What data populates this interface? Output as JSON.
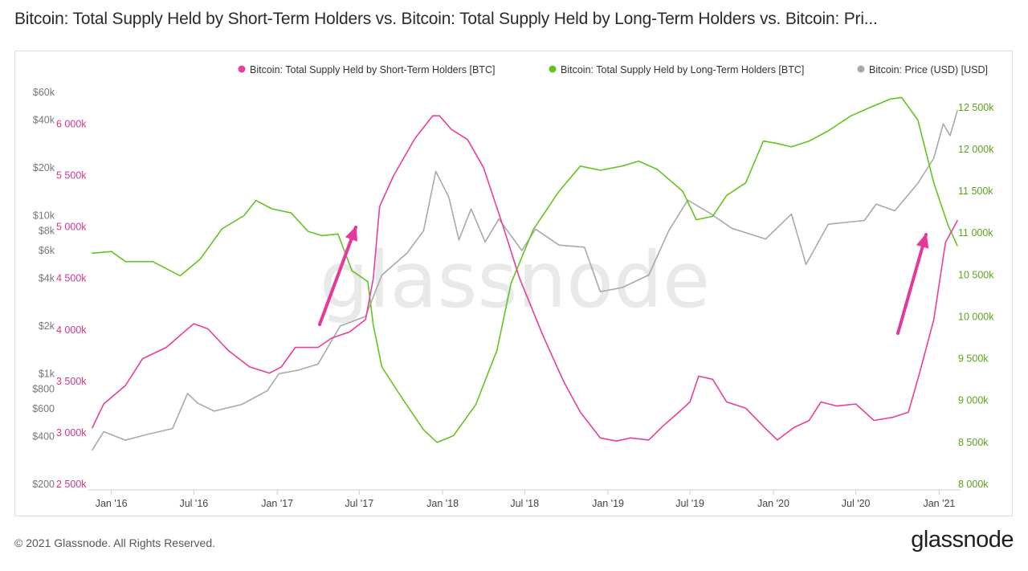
{
  "title": "Bitcoin: Total Supply Held by Short-Term Holders vs. Bitcoin: Total Supply Held by Long-Term Holders vs. Bitcoin: Pri...",
  "footer": {
    "copyright": "© 2021 Glassnode. All Rights Reserved.",
    "logo": "glassnode"
  },
  "watermark": "glassnode",
  "colors": {
    "sth": "#e83e9c",
    "lth": "#62c51e",
    "price": "#a9a9a9",
    "arrow": "#e6379a"
  },
  "chart_data": {
    "type": "line",
    "legend_position": "top-right",
    "grid": false,
    "x_ticks": [
      "Jan '16",
      "Jul '16",
      "Jan '17",
      "Jul '17",
      "Jan '18",
      "Jul '18",
      "Jan '19",
      "Jul '19",
      "Jan '20",
      "Jul '20",
      "Jan '21"
    ],
    "price_axis": {
      "scale": "log",
      "range": [
        200,
        60000
      ],
      "ticks": [
        "$60k",
        "$40k",
        "$20k",
        "$10k",
        "$8k",
        "$6k",
        "$4k",
        "$2k",
        "$1k",
        "$800",
        "$600",
        "$400",
        "$200"
      ]
    },
    "sth_axis": {
      "range": [
        2500000,
        6300000
      ],
      "ticks": [
        "6 000k",
        "5 500k",
        "5 000k",
        "4 500k",
        "4 000k",
        "3 500k",
        "3 000k",
        "2 500k"
      ]
    },
    "lth_axis": {
      "range": [
        8000000,
        12700000
      ],
      "ticks": [
        "12 500k",
        "12 000k",
        "11 500k",
        "11 000k",
        "10 500k",
        "10 000k",
        "9 500k",
        "9 000k",
        "8 500k",
        "8 000k"
      ]
    },
    "series": [
      {
        "name": "Bitcoin: Total Supply Held by Short-Term Holders [BTC]",
        "axis": "sth",
        "points": [
          [
            "2015-11-20",
            3050000
          ],
          [
            "2015-12-15",
            3280000
          ],
          [
            "2016-02-01",
            3460000
          ],
          [
            "2016-03-10",
            3720000
          ],
          [
            "2016-05-01",
            3830000
          ],
          [
            "2016-06-20",
            4020000
          ],
          [
            "2016-07-01",
            4060000
          ],
          [
            "2016-08-01",
            4010000
          ],
          [
            "2016-09-15",
            3800000
          ],
          [
            "2016-11-01",
            3640000
          ],
          [
            "2016-12-15",
            3580000
          ],
          [
            "2017-01-10",
            3640000
          ],
          [
            "2017-02-10",
            3830000
          ],
          [
            "2017-04-01",
            3830000
          ],
          [
            "2017-05-01",
            3920000
          ],
          [
            "2017-06-10",
            3980000
          ],
          [
            "2017-07-15",
            4100000
          ],
          [
            "2017-08-01",
            4500000
          ],
          [
            "2017-08-15",
            5200000
          ],
          [
            "2017-09-15",
            5500000
          ],
          [
            "2017-11-01",
            5860000
          ],
          [
            "2017-12-10",
            6080000
          ],
          [
            "2017-12-25",
            6080000
          ],
          [
            "2018-01-20",
            5950000
          ],
          [
            "2018-02-25",
            5850000
          ],
          [
            "2018-04-01",
            5580000
          ],
          [
            "2018-05-15",
            5000000
          ],
          [
            "2018-06-20",
            4500000
          ],
          [
            "2018-08-10",
            3950000
          ],
          [
            "2018-09-25",
            3500000
          ],
          [
            "2018-11-01",
            3200000
          ],
          [
            "2018-12-15",
            2950000
          ],
          [
            "2019-01-20",
            2920000
          ],
          [
            "2019-02-20",
            2950000
          ],
          [
            "2019-04-01",
            2930000
          ],
          [
            "2019-05-01",
            3060000
          ],
          [
            "2019-06-01",
            3180000
          ],
          [
            "2019-07-01",
            3300000
          ],
          [
            "2019-07-20",
            3550000
          ],
          [
            "2019-08-20",
            3520000
          ],
          [
            "2019-09-20",
            3300000
          ],
          [
            "2019-11-01",
            3240000
          ],
          [
            "2019-12-15",
            3040000
          ],
          [
            "2020-01-10",
            2930000
          ],
          [
            "2020-02-15",
            3050000
          ],
          [
            "2020-03-20",
            3120000
          ],
          [
            "2020-04-15",
            3300000
          ],
          [
            "2020-05-20",
            3260000
          ],
          [
            "2020-07-01",
            3280000
          ],
          [
            "2020-08-10",
            3120000
          ],
          [
            "2020-09-20",
            3150000
          ],
          [
            "2020-10-25",
            3200000
          ],
          [
            "2020-11-20",
            3600000
          ],
          [
            "2020-12-20",
            4100000
          ],
          [
            "2021-01-15",
            4850000
          ],
          [
            "2021-02-10",
            5060000
          ]
        ]
      },
      {
        "name": "Bitcoin: Total Supply Held by Long-Term Holders [BTC]",
        "axis": "lth",
        "points": [
          [
            "2015-11-20",
            10760000
          ],
          [
            "2016-01-01",
            10780000
          ],
          [
            "2016-02-01",
            10660000
          ],
          [
            "2016-04-01",
            10660000
          ],
          [
            "2016-06-01",
            10490000
          ],
          [
            "2016-07-15",
            10690000
          ],
          [
            "2016-09-01",
            11050000
          ],
          [
            "2016-10-20",
            11210000
          ],
          [
            "2016-11-15",
            11390000
          ],
          [
            "2016-12-20",
            11290000
          ],
          [
            "2017-02-01",
            11240000
          ],
          [
            "2017-03-10",
            11020000
          ],
          [
            "2017-04-10",
            10970000
          ],
          [
            "2017-05-15",
            10990000
          ],
          [
            "2017-06-15",
            10550000
          ],
          [
            "2017-07-20",
            10420000
          ],
          [
            "2017-08-01",
            9900000
          ],
          [
            "2017-08-20",
            9400000
          ],
          [
            "2017-10-01",
            9050000
          ],
          [
            "2017-11-20",
            8650000
          ],
          [
            "2017-12-20",
            8500000
          ],
          [
            "2018-01-25",
            8580000
          ],
          [
            "2018-03-15",
            8950000
          ],
          [
            "2018-05-01",
            9600000
          ],
          [
            "2018-06-01",
            10400000
          ],
          [
            "2018-07-20",
            11040000
          ],
          [
            "2018-09-15",
            11500000
          ],
          [
            "2018-11-01",
            11800000
          ],
          [
            "2018-12-15",
            11750000
          ],
          [
            "2019-02-01",
            11800000
          ],
          [
            "2019-03-10",
            11860000
          ],
          [
            "2019-04-20",
            11760000
          ],
          [
            "2019-06-15",
            11500000
          ],
          [
            "2019-07-15",
            11160000
          ],
          [
            "2019-08-20",
            11200000
          ],
          [
            "2019-09-20",
            11450000
          ],
          [
            "2019-11-01",
            11600000
          ],
          [
            "2019-12-10",
            12100000
          ],
          [
            "2020-01-10",
            12070000
          ],
          [
            "2020-02-10",
            12030000
          ],
          [
            "2020-03-20",
            12100000
          ],
          [
            "2020-05-01",
            12220000
          ],
          [
            "2020-06-20",
            12400000
          ],
          [
            "2020-08-01",
            12500000
          ],
          [
            "2020-09-15",
            12600000
          ],
          [
            "2020-10-10",
            12620000
          ],
          [
            "2020-11-15",
            12350000
          ],
          [
            "2020-12-20",
            11600000
          ],
          [
            "2021-01-20",
            11100000
          ],
          [
            "2021-02-10",
            10850000
          ]
        ]
      },
      {
        "name": "Bitcoin: Price (USD) [USD]",
        "axis": "price",
        "points": [
          [
            "2015-11-20",
            330
          ],
          [
            "2015-12-15",
            430
          ],
          [
            "2016-02-01",
            380
          ],
          [
            "2016-03-15",
            410
          ],
          [
            "2016-05-15",
            450
          ],
          [
            "2016-06-17",
            750
          ],
          [
            "2016-07-10",
            650
          ],
          [
            "2016-08-15",
            580
          ],
          [
            "2016-10-15",
            640
          ],
          [
            "2016-12-10",
            780
          ],
          [
            "2017-01-05",
            1000
          ],
          [
            "2017-02-15",
            1050
          ],
          [
            "2017-04-01",
            1150
          ],
          [
            "2017-05-20",
            2000
          ],
          [
            "2017-07-15",
            2300
          ],
          [
            "2017-08-20",
            4200
          ],
          [
            "2017-10-15",
            5800
          ],
          [
            "2017-11-20",
            8000
          ],
          [
            "2017-12-17",
            19000
          ],
          [
            "2018-01-15",
            13000
          ],
          [
            "2018-02-06",
            7000
          ],
          [
            "2018-03-05",
            11000
          ],
          [
            "2018-04-05",
            6800
          ],
          [
            "2018-05-05",
            9500
          ],
          [
            "2018-06-25",
            6000
          ],
          [
            "2018-07-25",
            8200
          ],
          [
            "2018-09-15",
            6500
          ],
          [
            "2018-11-10",
            6300
          ],
          [
            "2018-12-15",
            3300
          ],
          [
            "2019-02-01",
            3500
          ],
          [
            "2019-04-01",
            4200
          ],
          [
            "2019-05-15",
            8000
          ],
          [
            "2019-06-26",
            12500
          ],
          [
            "2019-08-15",
            10300
          ],
          [
            "2019-10-01",
            8300
          ],
          [
            "2019-12-15",
            7100
          ],
          [
            "2020-02-10",
            10200
          ],
          [
            "2020-03-13",
            4900
          ],
          [
            "2020-05-01",
            8800
          ],
          [
            "2020-07-20",
            9300
          ],
          [
            "2020-08-15",
            11800
          ],
          [
            "2020-09-25",
            10700
          ],
          [
            "2020-11-15",
            16000
          ],
          [
            "2020-12-20",
            23000
          ],
          [
            "2021-01-10",
            38000
          ],
          [
            "2021-01-25",
            32000
          ],
          [
            "2021-02-10",
            46000
          ]
        ]
      }
    ]
  }
}
